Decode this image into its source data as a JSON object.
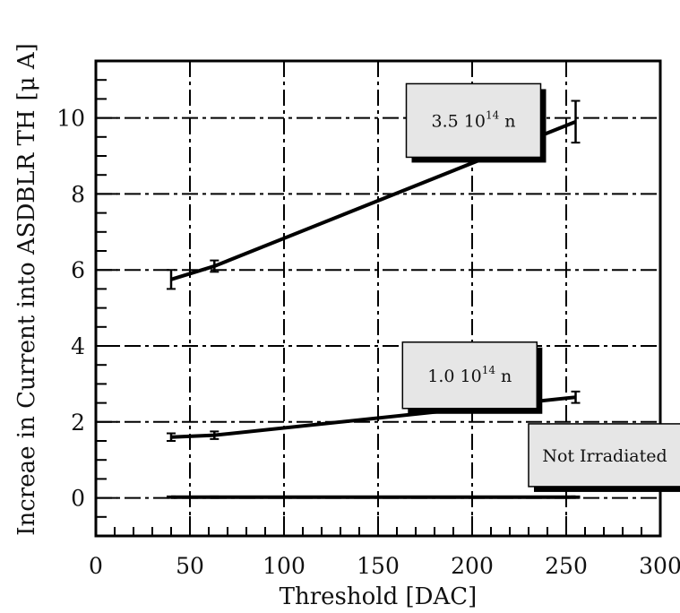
{
  "chart_data": {
    "type": "line",
    "title": "",
    "xlabel": "Threshold [DAC]",
    "ylabel": "Increae in Current into ASDBLR TH",
    "ylabel_unit": "[μ A]",
    "xlim": [
      0,
      300
    ],
    "ylim": [
      -1,
      11.5
    ],
    "xticks": [
      0,
      50,
      100,
      150,
      200,
      250,
      300
    ],
    "yticks": [
      0,
      2,
      4,
      6,
      8,
      10
    ],
    "grid": true,
    "series": [
      {
        "label_base": "3.5 10",
        "label_exp": "14",
        "label_unit": " n",
        "x": [
          40,
          63,
          255
        ],
        "y": [
          5.75,
          6.1,
          9.9
        ],
        "yerr": [
          0.25,
          0.15,
          0.55
        ]
      },
      {
        "label_base": "1.0 10",
        "label_exp": "14",
        "label_unit": " n",
        "x": [
          40,
          63,
          255
        ],
        "y": [
          1.6,
          1.65,
          2.65
        ],
        "yerr": [
          0.1,
          0.1,
          0.15
        ]
      },
      {
        "label": "Not Irradiated",
        "x": [
          40,
          63,
          255
        ],
        "y": [
          0.02,
          0.02,
          0.02
        ],
        "yerr": [
          0.02,
          0.02,
          0.02
        ]
      }
    ]
  }
}
